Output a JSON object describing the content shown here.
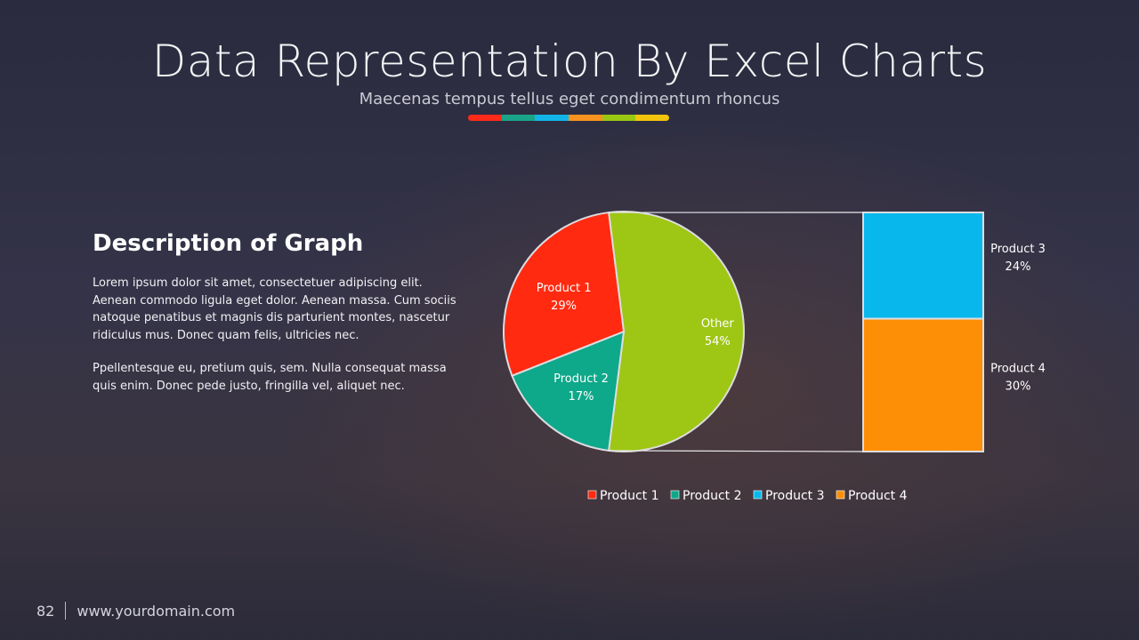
{
  "header": {
    "title": "Data Representation By Excel Charts",
    "subtitle": "Maecenas tempus tellus eget condimentum rhoncus",
    "accent_colors": [
      "#ff2a1a",
      "#1aa488",
      "#12b5e8",
      "#f7931e",
      "#9ac712",
      "#f2c40c"
    ]
  },
  "description": {
    "heading": "Description of Graph",
    "paragraph1": "Lorem ipsum dolor sit amet, consectetuer adipiscing elit. Aenean commodo  ligula eget dolor. Aenean massa. Cum sociis natoque penatibus et magnis dis parturient montes, nascetur ridiculus mus. Donec quam felis, ultricies nec.",
    "paragraph2": "Ppellentesque eu, pretium quis, sem. Nulla consequat massa quis enim. Donec pede justo, fringilla vel, aliquet nec."
  },
  "chart_data": {
    "type": "pie",
    "subtype": "bar-of-pie",
    "pie_slices": [
      {
        "label": "Product 1",
        "value": 29,
        "value_label": "29%",
        "color": "#ff2a10"
      },
      {
        "label": "Product 2",
        "value": 17,
        "value_label": "17%",
        "color": "#0ea88a"
      },
      {
        "label": "Other",
        "value": 54,
        "value_label": "54%",
        "color": "#9ec614"
      }
    ],
    "bar_segments": [
      {
        "label": "Product 3",
        "value": 24,
        "value_label": "24%",
        "color": "#08b8ec"
      },
      {
        "label": "Product 4",
        "value": 30,
        "value_label": "30%",
        "color": "#fd8f06"
      }
    ],
    "legend": [
      {
        "label": "Product 1",
        "color": "#ff2a10"
      },
      {
        "label": "Product 2",
        "color": "#0ea88a"
      },
      {
        "label": "Product 3",
        "color": "#08b8ec"
      },
      {
        "label": "Product 4",
        "color": "#fd8f06"
      }
    ],
    "legend_position": "bottom",
    "grid": false
  },
  "footer": {
    "page_number": "82",
    "website": "www.yourdomain.com"
  }
}
